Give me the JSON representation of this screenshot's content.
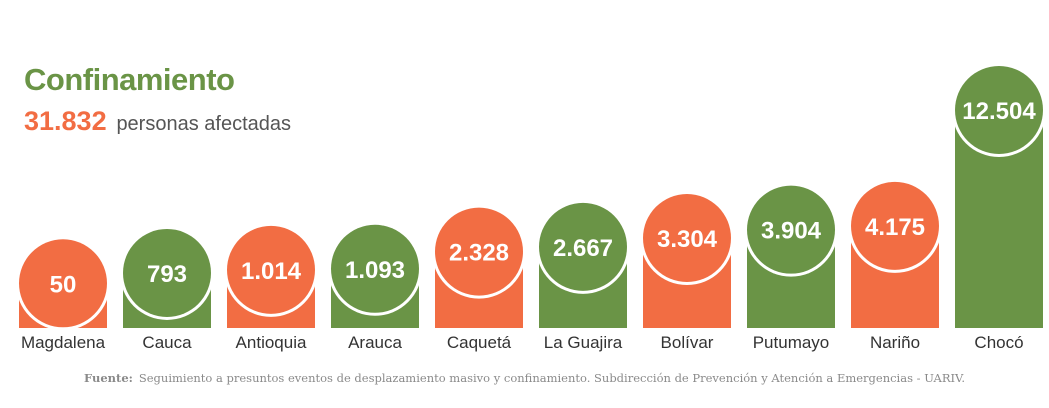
{
  "header": {
    "title": "Confinamiento",
    "total": "31.832",
    "total_suffix": "personas afectadas"
  },
  "footer": {
    "source_label": "Fuente:",
    "source_text": "Seguimiento a presuntos eventos de desplazamiento masivo y confinamiento. Subdirección de Prevención y Atención a Emergencias - UARIV."
  },
  "colors": {
    "green": "#6a9446",
    "orange": "#f26d43",
    "text": "#333333"
  },
  "chart_data": {
    "type": "bar",
    "title": "Confinamiento",
    "categories": [
      "Magdalena",
      "Cauca",
      "Antioquia",
      "Arauca",
      "Caquetá",
      "La Guajira",
      "Bolívar",
      "Putumayo",
      "Nariño",
      "Chocó"
    ],
    "values": [
      50,
      793,
      1014,
      1093,
      2328,
      2667,
      3304,
      3904,
      4175,
      12504
    ],
    "value_labels": [
      "50",
      "793",
      "1.014",
      "1.093",
      "2.328",
      "2.667",
      "3.304",
      "3.904",
      "4.175",
      "12.504"
    ],
    "bar_colors": [
      "orange",
      "green",
      "orange",
      "green",
      "orange",
      "green",
      "orange",
      "green",
      "orange",
      "green"
    ],
    "grid": false,
    "legend": "none"
  }
}
